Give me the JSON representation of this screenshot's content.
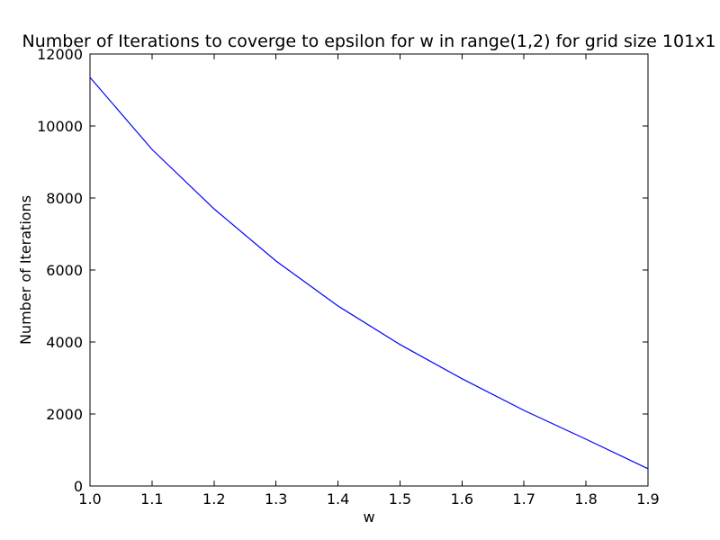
{
  "chart_data": {
    "type": "line",
    "title": "Number of Iterations to coverge to epsilon for w in range(1,2) for grid size 101x1",
    "xlabel": "w",
    "ylabel": "Number of Iterations",
    "xlim": [
      1.0,
      1.9
    ],
    "ylim": [
      0,
      12000
    ],
    "xticks": [
      "1.0",
      "1.1",
      "1.2",
      "1.3",
      "1.4",
      "1.5",
      "1.6",
      "1.7",
      "1.8",
      "1.9"
    ],
    "yticks": [
      "0",
      "2000",
      "4000",
      "6000",
      "8000",
      "10000",
      "12000"
    ],
    "grid": false,
    "legend": "none",
    "series": [
      {
        "color": "#0000ff",
        "x": [
          1.0,
          1.1,
          1.2,
          1.3,
          1.4,
          1.5,
          1.6,
          1.7,
          1.8,
          1.9
        ],
        "y": [
          11350,
          9350,
          7700,
          6250,
          5000,
          3930,
          2980,
          2100,
          1300,
          480
        ]
      }
    ]
  }
}
